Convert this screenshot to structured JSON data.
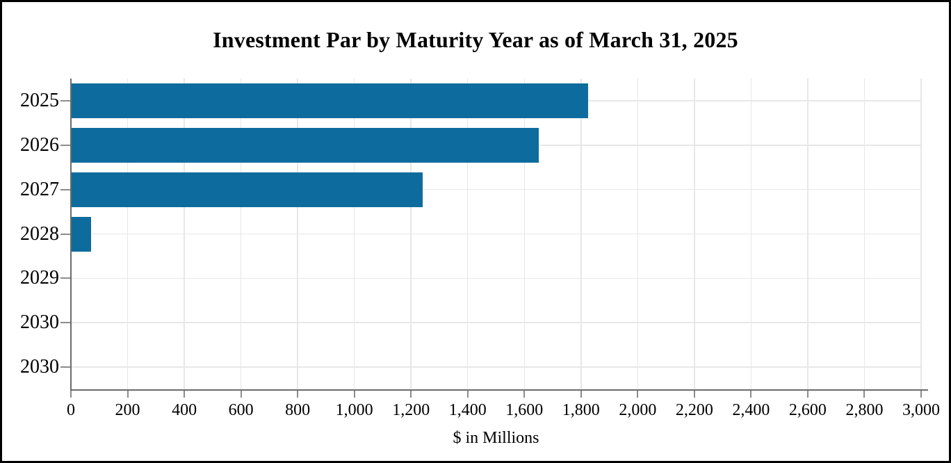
{
  "chart_data": {
    "type": "bar",
    "orientation": "horizontal",
    "title": "Investment Par by Maturity Year as of March 31, 2025",
    "categories": [
      "2025",
      "2026",
      "2027",
      "2028",
      "2029",
      "2030",
      "2030"
    ],
    "values": [
      1825,
      1650,
      1240,
      70,
      0,
      0,
      0
    ],
    "xlabel": "$ in Millions",
    "ylabel": "",
    "xlim": [
      0,
      3000
    ],
    "xtick_interval": 200,
    "xtick_labels": [
      "0",
      "200",
      "400",
      "600",
      "800",
      "1,000",
      "1,200",
      "1,400",
      "1,600",
      "1,800",
      "2,000",
      "2,200",
      "2,400",
      "2,600",
      "2,800",
      "3,000"
    ],
    "grid": "both",
    "legend": "none",
    "bar_color": "#0d6c9d",
    "frame_color": "#000000",
    "axis_color": "#6b6b6b",
    "gridline_color": "#e7e7e7"
  }
}
